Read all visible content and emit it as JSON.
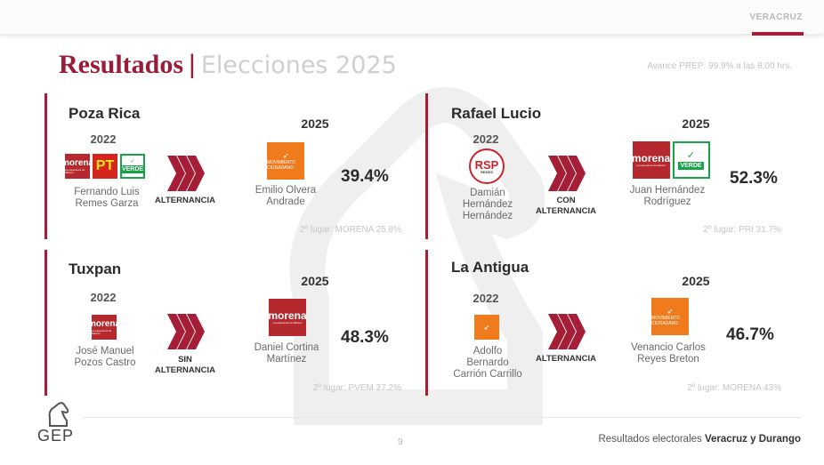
{
  "header": {
    "region": "VERACRUZ"
  },
  "title": {
    "main": "Resultados",
    "separator": "|",
    "sub": "Elecciones 2025"
  },
  "avance": "Avance PREP: 99.9% a las 8:00 hrs.",
  "cards": [
    {
      "municipio": "Poza Rica",
      "year_prev": "2022",
      "prev_logos": [
        "morena",
        "pt",
        "verde"
      ],
      "prev_name": "Fernando Luis Remes Garza",
      "status": "ALTERNANCIA",
      "year_new": "2025",
      "new_logos": [
        "movimiento-ciudadano"
      ],
      "new_name": "Emilio Olvera Andrade",
      "percent": "39.4%",
      "second_place": "2º lugar: MORENA 25.8%"
    },
    {
      "municipio": "Rafael Lucio",
      "year_prev": "2022",
      "prev_logos": [
        "rsp"
      ],
      "prev_name": "Damián Hernández Hernández",
      "status": "CON ALTERNANCIA",
      "year_new": "2025",
      "new_logos": [
        "morena",
        "verde"
      ],
      "new_name": "Juan Hernández Rodríguez",
      "percent": "52.3%",
      "second_place": "2º lugar: PRI 31.7%"
    },
    {
      "municipio": "Tuxpan",
      "year_prev": "2022",
      "prev_logos": [
        "morena"
      ],
      "prev_name": "José Manuel Pozos Castro",
      "status": "SIN ALTERNANCIA",
      "year_new": "2025",
      "new_logos": [
        "morena"
      ],
      "new_name": "Daniel Cortina Martínez",
      "percent": "48.3%",
      "second_place": "2º lugar: PVEM 27.2%"
    },
    {
      "municipio": "La Antigua",
      "year_prev": "2022",
      "prev_logos": [
        "movimiento-ciudadano"
      ],
      "prev_name": "Adolfo Bernardo Carrión Carrillo",
      "status": "ALTERNANCIA",
      "year_new": "2025",
      "new_logos": [
        "movimiento-ciudadano"
      ],
      "new_name": "Venancio Carlos Reyes Breton",
      "percent": "46.7%",
      "second_place": "2º lugar: MORENA 43%"
    }
  ],
  "logo_text": {
    "morena": "morena",
    "morena_tag": "La esperanza de México",
    "pt": "PT",
    "verde": "VERDE",
    "verde_mark": "✓",
    "mc": "MOVIMIENTO CIUDADANO",
    "rsp": "RSP",
    "rsp_sub": "REDES"
  },
  "footer": {
    "page": "9",
    "text": "Resultados electorales",
    "text_bold": "Veracruz y Durango",
    "brand": "GEP"
  },
  "colors": {
    "accent": "#a51d36",
    "morena": "#b5282e",
    "mc": "#f07b1d",
    "verde": "#18a34a",
    "pt": "#d4261d"
  }
}
